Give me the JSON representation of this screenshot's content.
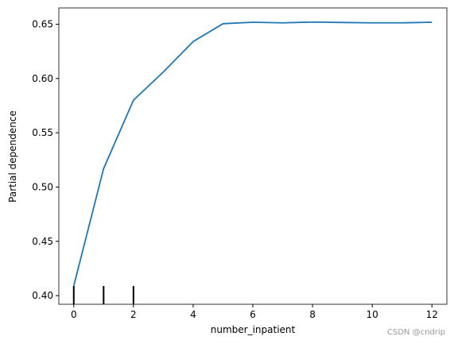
{
  "chart_data": {
    "type": "line",
    "xlabel": "number_inpatient",
    "ylabel": "Partial dependence",
    "x": [
      0,
      1,
      2,
      3,
      4,
      5,
      6,
      7,
      8,
      9,
      10,
      11,
      12
    ],
    "series": [
      {
        "name": "partial dependence",
        "color": "#1f77b4",
        "values": [
          0.409,
          0.517,
          0.58,
          0.606,
          0.634,
          0.6505,
          0.6518,
          0.6513,
          0.652,
          0.6516,
          0.6513,
          0.6513,
          0.6518
        ]
      }
    ],
    "deciles": [
      0,
      1,
      2
    ],
    "xlim": [
      -0.5,
      12.5
    ],
    "xticks": [
      0,
      2,
      4,
      6,
      8,
      10,
      12
    ],
    "ylim": [
      0.392,
      0.665
    ],
    "yticks": [
      {
        "value": 0.4,
        "label": "0.40"
      },
      {
        "value": 0.45,
        "label": "0.45"
      },
      {
        "value": 0.5,
        "label": "0.50"
      },
      {
        "value": 0.55,
        "label": "0.55"
      },
      {
        "value": 0.6,
        "label": "0.60"
      },
      {
        "value": 0.65,
        "label": "0.65"
      }
    ],
    "watermark": "CSDN @cndrip"
  }
}
